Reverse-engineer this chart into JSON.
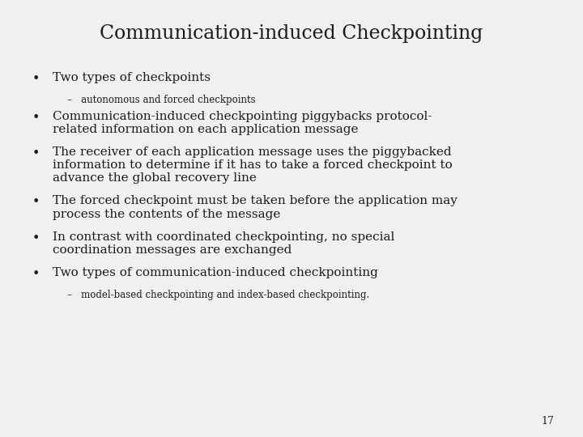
{
  "title": "Communication-induced Checkpointing",
  "background_color": "#f0f0f0",
  "text_color": "#1a1a1a",
  "title_fontsize": 17,
  "body_fontsize": 11,
  "sub_fontsize": 8.5,
  "page_number": "17",
  "bullet_items": [
    {
      "type": "bullet",
      "text": "Two types of checkpoints",
      "level": 1
    },
    {
      "type": "sub",
      "text": "–   autonomous and forced checkpoints",
      "level": 2
    },
    {
      "type": "bullet",
      "text": "Communication-induced checkpointing piggybacks protocol-\nrelated information on each application message",
      "level": 1
    },
    {
      "type": "bullet",
      "text": "The receiver of each application message uses the piggybacked\ninformation to determine if it has to take a forced checkpoint to\nadvance the global recovery line",
      "level": 1
    },
    {
      "type": "bullet",
      "text": "The forced checkpoint must be taken before the application may\nprocess the contents of the message",
      "level": 1
    },
    {
      "type": "bullet",
      "text": "In contrast with coordinated checkpointing, no special\ncoordination messages are exchanged",
      "level": 1
    },
    {
      "type": "bullet",
      "text": "Two types of communication-induced checkpointing",
      "level": 1
    },
    {
      "type": "sub",
      "text": "–   model-based checkpointing and index-based checkpointing.",
      "level": 2
    }
  ]
}
